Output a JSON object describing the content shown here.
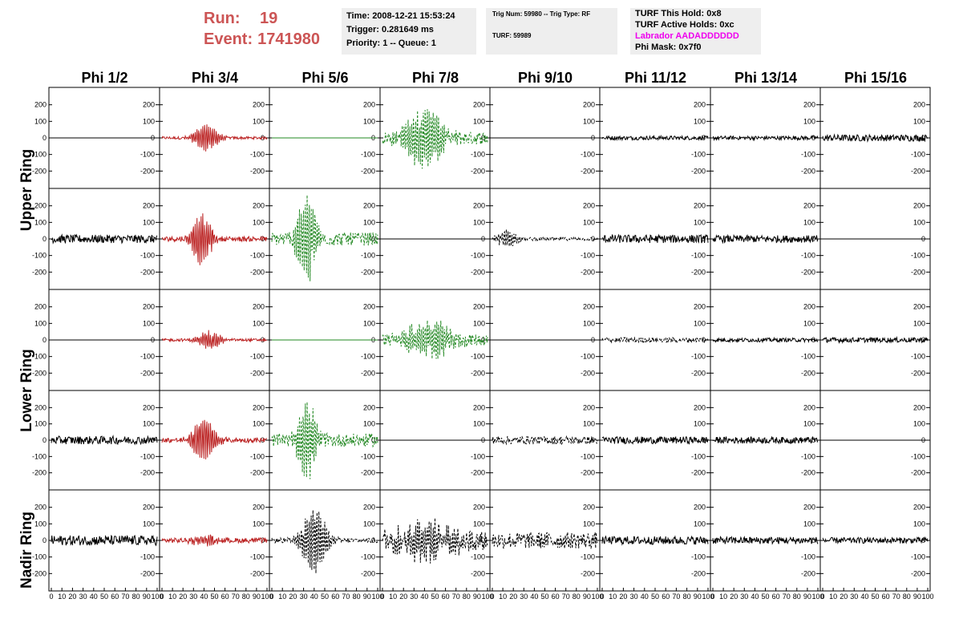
{
  "run_info": {
    "run_label": "Run:",
    "run_value": "19",
    "event_label": "Event:",
    "event_value": "1741980"
  },
  "info_box_1": {
    "time": "Time: 2008-12-21 15:53:24",
    "trigger": "Trigger: 0.281649 ms",
    "priority": "Priority: 1 -- Queue: 1"
  },
  "info_box_2": {
    "trig": "Trig Num: 59980 -- Trig Type: RF",
    "turf": "TURF: 59989"
  },
  "info_box_3": {
    "hold": "TURF This Hold: 0x8",
    "active": "TURF Active Holds: 0xc",
    "labrador": "Labrador AADADDDDDD",
    "phimask": "Phi Mask: 0x7f0"
  },
  "colors": {
    "run_text": "#cc5555",
    "labrador_text": "#ee00ee",
    "red_trace": "#bb2222",
    "green_trace": "#228822",
    "black_trace": "#000000",
    "box_bg": "#eeeeee"
  },
  "columns": [
    "Phi 1/2",
    "Phi 3/4",
    "Phi 5/6",
    "Phi 7/8",
    "Phi 9/10",
    "Phi 11/12",
    "Phi 13/14",
    "Phi 15/16"
  ],
  "rows": [
    "Upper Ring",
    "Upper Ring",
    "Lower Ring",
    "Lower Ring",
    "Nadir Ring"
  ],
  "row_labels": [
    "Upper Ring",
    "Lower Ring",
    "Nadir Ring"
  ],
  "chart_data": {
    "type": "line",
    "title": "",
    "xlabel": "",
    "ylabel": "",
    "xlim": [
      0,
      100
    ],
    "ylim": [
      -280,
      280
    ],
    "yticks": [
      -200,
      -100,
      0,
      100,
      200
    ],
    "y_tick_labels": [
      "-200",
      "-100",
      "0",
      "100",
      "200"
    ],
    "xticks": [
      0,
      10,
      20,
      30,
      40,
      50,
      60,
      70,
      80,
      90,
      100
    ],
    "x_tick_labels": [
      "0",
      "10",
      "20",
      "30",
      "40",
      "50",
      "60",
      "70",
      "80",
      "90",
      "100"
    ],
    "panels": [
      [
        {
          "style": "flat",
          "color": "black",
          "amp": 0
        },
        {
          "style": "burst",
          "color": "red",
          "amp": 80,
          "center": 42,
          "width": 12,
          "noise": 8
        },
        {
          "style": "flat",
          "color": "green",
          "amp": 0
        },
        {
          "style": "burst",
          "color": "green",
          "amp": 170,
          "center": 40,
          "width": 20,
          "noise": 40,
          "dashed": true
        },
        {
          "style": "flat",
          "color": "black",
          "amp": 0
        },
        {
          "style": "noise",
          "color": "black",
          "amp": 12
        },
        {
          "style": "noise",
          "color": "black",
          "amp": 12
        },
        {
          "style": "noise",
          "color": "black",
          "amp": 20
        }
      ],
      [
        {
          "style": "noise",
          "color": "black",
          "amp": 25
        },
        {
          "style": "burst",
          "color": "red",
          "amp": 150,
          "center": 38,
          "width": 10,
          "noise": 15
        },
        {
          "style": "burst",
          "color": "green",
          "amp": 250,
          "center": 33,
          "width": 10,
          "noise": 40,
          "dashed": true
        },
        {
          "style": "flat",
          "color": "black",
          "amp": 0
        },
        {
          "style": "burst",
          "color": "black",
          "amp": 50,
          "center": 14,
          "width": 10,
          "noise": 10,
          "dashed": true
        },
        {
          "style": "noise",
          "color": "black",
          "amp": 25
        },
        {
          "style": "noise",
          "color": "black",
          "amp": 22
        },
        {
          "style": "flat",
          "color": "black",
          "amp": 0
        }
      ],
      [
        {
          "style": "flat",
          "color": "black",
          "amp": 0
        },
        {
          "style": "burst",
          "color": "red",
          "amp": 55,
          "center": 45,
          "width": 12,
          "noise": 8
        },
        {
          "style": "flat",
          "color": "green",
          "amp": 0
        },
        {
          "style": "burst",
          "color": "green",
          "amp": 120,
          "center": 45,
          "width": 22,
          "noise": 35,
          "dashed": true
        },
        {
          "style": "flat",
          "color": "black",
          "amp": 0
        },
        {
          "style": "noise",
          "color": "black",
          "amp": 15,
          "dashed": true
        },
        {
          "style": "noise",
          "color": "black",
          "amp": 12
        },
        {
          "style": "noise",
          "color": "black",
          "amp": 15
        }
      ],
      [
        {
          "style": "noise",
          "color": "black",
          "amp": 25
        },
        {
          "style": "burst",
          "color": "red",
          "amp": 130,
          "center": 40,
          "width": 12,
          "noise": 15
        },
        {
          "style": "burst",
          "color": "green",
          "amp": 230,
          "center": 33,
          "width": 10,
          "noise": 40,
          "dashed": true
        },
        {
          "style": "flat",
          "color": "black",
          "amp": 0
        },
        {
          "style": "noise",
          "color": "black",
          "amp": 25,
          "dashed": true
        },
        {
          "style": "noise",
          "color": "black",
          "amp": 22
        },
        {
          "style": "noise",
          "color": "black",
          "amp": 20
        },
        {
          "style": "flat",
          "color": "black",
          "amp": 0
        }
      ],
      [
        {
          "style": "noise",
          "color": "black",
          "amp": 30
        },
        {
          "style": "burst",
          "color": "red",
          "amp": 30,
          "center": 40,
          "width": 12,
          "noise": 15
        },
        {
          "style": "burst",
          "color": "black",
          "amp": 200,
          "center": 40,
          "width": 12,
          "noise": 15,
          "dashed": true
        },
        {
          "style": "burst",
          "color": "black",
          "amp": 100,
          "center": 42,
          "width": 30,
          "noise": 60,
          "dashed": true
        },
        {
          "style": "noise",
          "color": "black",
          "amp": 50,
          "dashed": true
        },
        {
          "style": "noise",
          "color": "black",
          "amp": 25
        },
        {
          "style": "noise",
          "color": "black",
          "amp": 22
        },
        {
          "style": "noise",
          "color": "black",
          "amp": 18
        }
      ]
    ]
  }
}
